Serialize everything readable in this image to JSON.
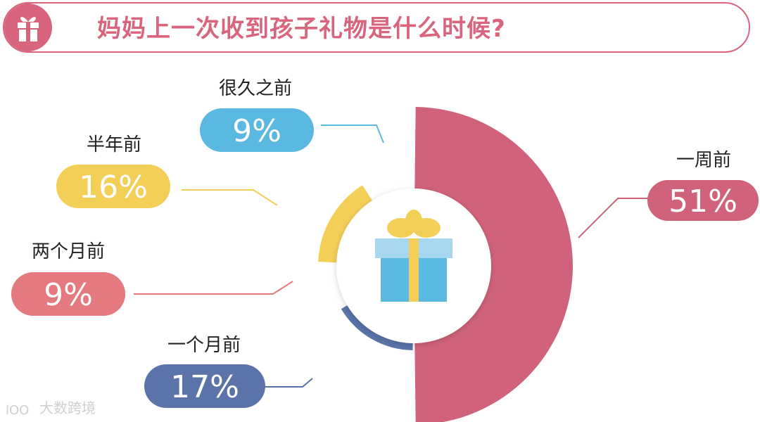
{
  "title": "妈妈上一次收到孩子礼物是什么时候?",
  "watermark": "大数跨境",
  "colors": {
    "accent": "#d8647d",
    "pink": "#d0637b",
    "navy": "#5a74a9",
    "salmon": "#e47a80",
    "yellow": "#f4cf58",
    "sky": "#5bb8e0"
  },
  "icons": [
    "gift-icon",
    "gift-box-icon",
    "logo-icon"
  ],
  "chart_data": {
    "type": "pie",
    "variant": "donut",
    "series": [
      {
        "name": "一周前",
        "value": 51,
        "label": "51%",
        "color": "#d0637b"
      },
      {
        "name": "一个月前",
        "value": 17,
        "label": "17%",
        "color": "#5a74a9"
      },
      {
        "name": "两个月前",
        "value": 9,
        "label": "9%",
        "color": "#e47a80"
      },
      {
        "name": "半年前",
        "value": 16,
        "label": "16%",
        "color": "#f4cf58"
      },
      {
        "name": "很久之前",
        "value": 9,
        "label": "9%",
        "color": "#5bb8e0"
      }
    ]
  }
}
